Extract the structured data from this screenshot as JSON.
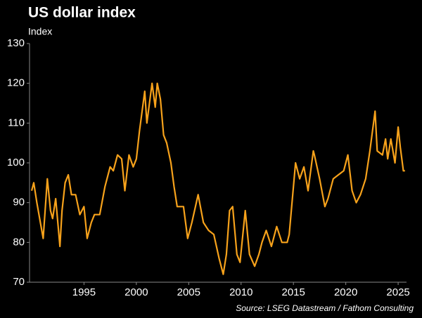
{
  "chart_data": {
    "type": "line",
    "title": "US dollar index",
    "y_label": "Index",
    "source": "Source: LSEG Datastream / Fathom Consulting",
    "x": [
      1990.0,
      1990.2,
      1990.5,
      1990.9,
      1991.1,
      1991.5,
      1991.8,
      1992.0,
      1992.3,
      1992.7,
      1992.9,
      1993.2,
      1993.5,
      1993.8,
      1994.2,
      1994.6,
      1995.0,
      1995.3,
      1995.7,
      1996.0,
      1996.5,
      1997.0,
      1997.5,
      1997.8,
      1998.2,
      1998.6,
      1998.9,
      1999.3,
      1999.7,
      2000.0,
      2000.3,
      2000.8,
      2001.0,
      2001.5,
      2001.8,
      2002.0,
      2002.3,
      2002.6,
      2002.9,
      2003.3,
      2003.6,
      2003.9,
      2004.2,
      2004.5,
      2004.9,
      2005.3,
      2005.9,
      2006.4,
      2006.9,
      2007.4,
      2007.9,
      2008.3,
      2008.6,
      2008.9,
      2009.2,
      2009.6,
      2009.9,
      2010.4,
      2010.8,
      2011.3,
      2011.7,
      2012.0,
      2012.4,
      2012.9,
      2013.4,
      2013.9,
      2014.4,
      2014.6,
      2015.0,
      2015.2,
      2015.6,
      2016.0,
      2016.4,
      2016.9,
      2017.0,
      2017.5,
      2018.0,
      2018.3,
      2018.8,
      2019.3,
      2019.8,
      2020.2,
      2020.6,
      2021.0,
      2021.4,
      2021.9,
      2022.3,
      2022.8,
      2023.0,
      2023.5,
      2023.8,
      2024.0,
      2024.3,
      2024.7,
      2025.0,
      2025.2,
      2025.5,
      2025.65
    ],
    "series": [
      {
        "name": "US dollar index",
        "color": "#f7a21b",
        "values": [
          93,
          95,
          90,
          84,
          81,
          96,
          88,
          86,
          91,
          79,
          88,
          95,
          97,
          92,
          92,
          87,
          89,
          81,
          85,
          87,
          87,
          94,
          99,
          98,
          102,
          101,
          93,
          102,
          99,
          101,
          108,
          118,
          110,
          120,
          114,
          120,
          116,
          107,
          105,
          100,
          94,
          89,
          89,
          89,
          81,
          85,
          92,
          85,
          83,
          82,
          76,
          72,
          77,
          88,
          89,
          77,
          75,
          88,
          77,
          74,
          77,
          80,
          83,
          79,
          84,
          80,
          80,
          82,
          94,
          100,
          96,
          99,
          93,
          103,
          102,
          96,
          89,
          91,
          96,
          97,
          98,
          102,
          93,
          90,
          92,
          96,
          103,
          113,
          103,
          102,
          106,
          101,
          106,
          100,
          109,
          104,
          98,
          98
        ]
      }
    ],
    "xlim": [
      1989.8,
      2025.8
    ],
    "xticks": [
      1995,
      2000,
      2005,
      2010,
      2015,
      2020,
      2025
    ],
    "ylim": [
      70,
      130
    ],
    "yticks": [
      70,
      80,
      90,
      100,
      110,
      120,
      130
    ],
    "grid": false
  }
}
